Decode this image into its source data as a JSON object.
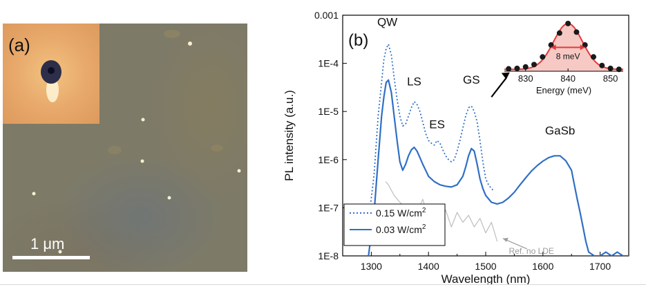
{
  "panel_a": {
    "label": "(a)",
    "scale_bar": "1 μm"
  },
  "chart_data": {
    "type": "line",
    "panel_label": "(b)",
    "xlabel": "Wavelength (nm)",
    "ylabel": "PL intensity (a.u.)",
    "xlim": [
      1250,
      1750
    ],
    "ylim": [
      1e-08,
      0.001
    ],
    "yscale": "log",
    "xticks": [
      1300,
      1400,
      1500,
      1600,
      1700
    ],
    "yticks": [
      {
        "value": 0.001,
        "label": "0.001"
      },
      {
        "value": 0.0001,
        "label": "1E-4"
      },
      {
        "value": 1e-05,
        "label": "1E-5"
      },
      {
        "value": 1e-06,
        "label": "1E-6"
      },
      {
        "value": 1e-07,
        "label": "1E-7"
      },
      {
        "value": 1e-08,
        "label": "1E-8"
      }
    ],
    "series": [
      {
        "name": "0.15 W/cm²",
        "label": "0.15 W/cm",
        "sup": "2",
        "style": "dotted",
        "color": "#2f6fc4",
        "x": [
          1295,
          1305,
          1312,
          1318,
          1322,
          1326,
          1330,
          1335,
          1340,
          1345,
          1350,
          1355,
          1360,
          1365,
          1370,
          1375,
          1380,
          1385,
          1390,
          1395,
          1400,
          1405,
          1410,
          1415,
          1420,
          1425,
          1430,
          1435,
          1440,
          1445,
          1450,
          1455,
          1460,
          1465,
          1470,
          1475,
          1480,
          1485,
          1490,
          1495,
          1500,
          1505,
          1510,
          1515
        ],
        "y": [
          5e-08,
          5e-07,
          8e-06,
          4e-05,
          0.00012,
          0.0002,
          0.00025,
          0.00015,
          5e-05,
          1.8e-05,
          8e-06,
          5e-06,
          5.5e-06,
          8e-06,
          1.2e-05,
          1.6e-05,
          1.4e-05,
          1e-05,
          6e-06,
          3.5e-06,
          2.5e-06,
          2.2e-06,
          2e-06,
          2.5e-06,
          2.2e-06,
          1.6e-06,
          1.2e-06,
          1e-06,
          9e-07,
          1e-06,
          1.5e-06,
          2.5e-06,
          4.5e-06,
          8e-06,
          1.2e-05,
          1.3e-05,
          1e-05,
          6e-06,
          2.5e-06,
          9e-07,
          4e-07,
          3e-07,
          2.5e-07,
          2.2e-07
        ]
      },
      {
        "name": "0.03 W/cm²",
        "label": "0.03 W/cm",
        "sup": "2",
        "style": "solid",
        "color": "#2f6fc4",
        "x": [
          1295,
          1305,
          1312,
          1318,
          1322,
          1326,
          1330,
          1335,
          1340,
          1345,
          1350,
          1355,
          1360,
          1365,
          1370,
          1375,
          1380,
          1385,
          1390,
          1395,
          1400,
          1410,
          1420,
          1430,
          1440,
          1450,
          1460,
          1465,
          1470,
          1475,
          1480,
          1485,
          1490,
          1495,
          1500,
          1510,
          1520,
          1530,
          1540,
          1550,
          1560,
          1570,
          1580,
          1590,
          1600,
          1610,
          1620,
          1630,
          1640,
          1650,
          1655,
          1660,
          1665,
          1670,
          1675,
          1680,
          1690,
          1700,
          1710,
          1720,
          1730,
          1740,
          1750
        ],
        "y": [
          1e-08,
          8e-08,
          1e-06,
          8e-06,
          2e-05,
          4e-05,
          4.5e-05,
          2.5e-05,
          8e-06,
          2.5e-06,
          9e-07,
          6e-07,
          8e-07,
          1.2e-06,
          1.6e-06,
          1.8e-06,
          1.5e-06,
          1.1e-06,
          8e-07,
          6e-07,
          4.5e-07,
          3.5e-07,
          3e-07,
          2.8e-07,
          2.7e-07,
          3e-07,
          4.5e-07,
          7e-07,
          1.2e-06,
          1.7e-06,
          1.5e-06,
          8e-07,
          4e-07,
          2.5e-07,
          1.8e-07,
          1.3e-07,
          1.2e-07,
          1.3e-07,
          1.6e-07,
          2.1e-07,
          3e-07,
          4.2e-07,
          5.8e-07,
          7.5e-07,
          9.3e-07,
          1.1e-06,
          1.2e-06,
          1.2e-06,
          9.5e-07,
          6e-07,
          3e-07,
          1.5e-07,
          8e-08,
          4e-08,
          2e-08,
          1.2e-08,
          1e-08,
          1e-08,
          1.2e-08,
          1e-08,
          1.2e-08,
          1e-08,
          1e-08
        ]
      },
      {
        "name": "Ref. no LDE",
        "style": "solid",
        "color": "#bdbdbd",
        "x": [
          1325,
          1330,
          1340,
          1350,
          1360,
          1370,
          1380,
          1390,
          1400,
          1410,
          1420,
          1430,
          1440,
          1450,
          1460,
          1470,
          1480,
          1490,
          1500,
          1510,
          1520
        ],
        "y": [
          3.5e-07,
          3e-07,
          1.8e-07,
          1.3e-07,
          1e-07,
          1.2e-07,
          8e-08,
          1.5e-07,
          6e-08,
          1e-07,
          5e-08,
          9e-08,
          4e-08,
          8e-08,
          5e-08,
          7e-08,
          4e-08,
          6e-08,
          3e-08,
          5e-08,
          2e-08
        ]
      }
    ],
    "annotations": [
      {
        "text": "QW",
        "x": 1328,
        "y": 0.0006
      },
      {
        "text": "LS",
        "x": 1375,
        "y": 3.5e-05
      },
      {
        "text": "ES",
        "x": 1415,
        "y": 4.5e-06
      },
      {
        "text": "GS",
        "x": 1475,
        "y": 3.8e-05
      },
      {
        "text": "GaSb",
        "x": 1630,
        "y": 3.3e-06
      },
      {
        "text": "Ref. no LDE",
        "x": 1580,
        "y": 1.1e-08
      }
    ],
    "inset": {
      "xlabel": "Energy (meV)",
      "xlim": [
        825,
        853
      ],
      "xticks": [
        830,
        840,
        850
      ],
      "fwhm_label": "8 meV",
      "fwhm_from": 836,
      "fwhm_to": 844,
      "points_x": [
        826,
        828,
        830,
        832,
        834,
        836,
        838,
        840,
        842,
        844,
        846,
        848,
        850,
        852
      ],
      "points_y": [
        0.05,
        0.06,
        0.09,
        0.14,
        0.3,
        0.55,
        0.8,
        1.0,
        0.82,
        0.55,
        0.3,
        0.12,
        0.06,
        0.04
      ],
      "fit_color": "#e03b3b",
      "fill_color": "#f6c9c4"
    }
  }
}
